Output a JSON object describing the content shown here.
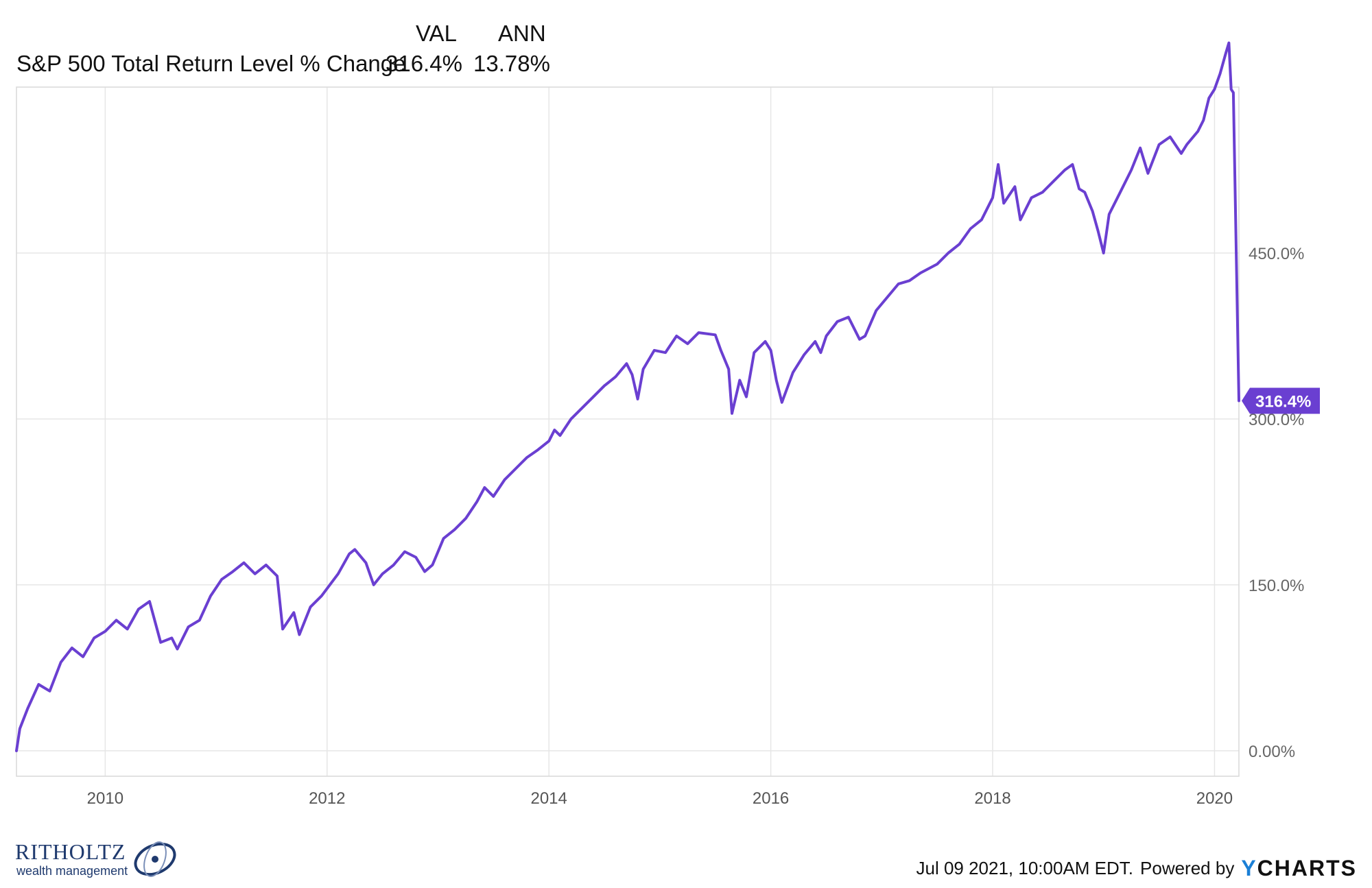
{
  "legend": {
    "col_val": "VAL",
    "col_ann": "ANN",
    "series_name": "S&P 500 Total Return Level % Change",
    "val": "316.4%",
    "ann": "13.78%"
  },
  "chart_data": {
    "type": "line",
    "series": [
      {
        "name": "S&P 500 Total Return Level % Change",
        "color": "#6a3fd1",
        "points": [
          [
            2009.2,
            0
          ],
          [
            2009.23,
            20
          ],
          [
            2009.3,
            38
          ],
          [
            2009.4,
            60
          ],
          [
            2009.5,
            54
          ],
          [
            2009.6,
            80
          ],
          [
            2009.7,
            93
          ],
          [
            2009.8,
            85
          ],
          [
            2009.9,
            102
          ],
          [
            2010.0,
            108
          ],
          [
            2010.1,
            118
          ],
          [
            2010.2,
            110
          ],
          [
            2010.3,
            128
          ],
          [
            2010.4,
            135
          ],
          [
            2010.5,
            98
          ],
          [
            2010.6,
            102
          ],
          [
            2010.65,
            92
          ],
          [
            2010.75,
            112
          ],
          [
            2010.85,
            118
          ],
          [
            2010.95,
            140
          ],
          [
            2011.05,
            155
          ],
          [
            2011.15,
            162
          ],
          [
            2011.25,
            170
          ],
          [
            2011.35,
            160
          ],
          [
            2011.45,
            168
          ],
          [
            2011.55,
            158
          ],
          [
            2011.6,
            110
          ],
          [
            2011.7,
            125
          ],
          [
            2011.75,
            105
          ],
          [
            2011.85,
            130
          ],
          [
            2011.95,
            140
          ],
          [
            2012.1,
            160
          ],
          [
            2012.2,
            178
          ],
          [
            2012.25,
            182
          ],
          [
            2012.35,
            170
          ],
          [
            2012.42,
            150
          ],
          [
            2012.5,
            160
          ],
          [
            2012.6,
            168
          ],
          [
            2012.7,
            180
          ],
          [
            2012.8,
            175
          ],
          [
            2012.88,
            162
          ],
          [
            2012.95,
            168
          ],
          [
            2013.05,
            192
          ],
          [
            2013.15,
            200
          ],
          [
            2013.25,
            210
          ],
          [
            2013.35,
            225
          ],
          [
            2013.42,
            238
          ],
          [
            2013.5,
            230
          ],
          [
            2013.6,
            245
          ],
          [
            2013.7,
            255
          ],
          [
            2013.8,
            265
          ],
          [
            2013.9,
            272
          ],
          [
            2014.0,
            280
          ],
          [
            2014.05,
            290
          ],
          [
            2014.1,
            285
          ],
          [
            2014.2,
            300
          ],
          [
            2014.3,
            310
          ],
          [
            2014.4,
            320
          ],
          [
            2014.5,
            330
          ],
          [
            2014.6,
            338
          ],
          [
            2014.7,
            350
          ],
          [
            2014.75,
            340
          ],
          [
            2014.8,
            318
          ],
          [
            2014.85,
            345
          ],
          [
            2014.95,
            362
          ],
          [
            2015.05,
            360
          ],
          [
            2015.15,
            375
          ],
          [
            2015.25,
            368
          ],
          [
            2015.35,
            378
          ],
          [
            2015.5,
            376
          ],
          [
            2015.55,
            362
          ],
          [
            2015.62,
            345
          ],
          [
            2015.65,
            305
          ],
          [
            2015.72,
            335
          ],
          [
            2015.78,
            320
          ],
          [
            2015.85,
            360
          ],
          [
            2015.95,
            370
          ],
          [
            2016.0,
            362
          ],
          [
            2016.05,
            335
          ],
          [
            2016.1,
            315
          ],
          [
            2016.2,
            342
          ],
          [
            2016.3,
            358
          ],
          [
            2016.4,
            370
          ],
          [
            2016.45,
            360
          ],
          [
            2016.5,
            375
          ],
          [
            2016.6,
            388
          ],
          [
            2016.7,
            392
          ],
          [
            2016.8,
            372
          ],
          [
            2016.85,
            375
          ],
          [
            2016.95,
            398
          ],
          [
            2017.05,
            410
          ],
          [
            2017.15,
            422
          ],
          [
            2017.25,
            425
          ],
          [
            2017.35,
            432
          ],
          [
            2017.5,
            440
          ],
          [
            2017.6,
            450
          ],
          [
            2017.7,
            458
          ],
          [
            2017.8,
            472
          ],
          [
            2017.9,
            480
          ],
          [
            2018.0,
            500
          ],
          [
            2018.05,
            530
          ],
          [
            2018.1,
            495
          ],
          [
            2018.2,
            510
          ],
          [
            2018.25,
            480
          ],
          [
            2018.35,
            500
          ],
          [
            2018.45,
            505
          ],
          [
            2018.55,
            515
          ],
          [
            2018.65,
            525
          ],
          [
            2018.72,
            530
          ],
          [
            2018.78,
            508
          ],
          [
            2018.83,
            505
          ],
          [
            2018.9,
            488
          ],
          [
            2018.95,
            470
          ],
          [
            2019.0,
            450
          ],
          [
            2019.05,
            485
          ],
          [
            2019.15,
            505
          ],
          [
            2019.25,
            525
          ],
          [
            2019.33,
            545
          ],
          [
            2019.4,
            522
          ],
          [
            2019.5,
            548
          ],
          [
            2019.6,
            555
          ],
          [
            2019.7,
            540
          ],
          [
            2019.75,
            548
          ],
          [
            2019.85,
            560
          ],
          [
            2019.9,
            570
          ],
          [
            2019.95,
            590
          ],
          [
            2020.0,
            598
          ],
          [
            2020.05,
            612
          ],
          [
            2020.1,
            630
          ],
          [
            2020.13,
            640
          ],
          [
            2020.15,
            598
          ],
          [
            2020.17,
            595
          ],
          [
            2020.22,
            316.4
          ]
        ]
      }
    ],
    "yticks": [
      "0.00%",
      "150.0%",
      "300.0%",
      "450.0%"
    ],
    "ytick_values": [
      0,
      150,
      300,
      450
    ],
    "xticks": [
      "2010",
      "2012",
      "2014",
      "2016",
      "2018",
      "2020"
    ],
    "xtick_values": [
      2010,
      2012,
      2014,
      2016,
      2018,
      2020
    ],
    "xlim": [
      2009.2,
      2020.22
    ],
    "ylim": [
      -23,
      600
    ],
    "end_label": "316.4%",
    "grid": true,
    "y_axis_side": "right"
  },
  "footer": {
    "timestamp": "Jul 09 2021, 10:00AM EDT.",
    "powered_by": "Powered by",
    "ycharts_y": "Y",
    "ycharts_rest": "CHARTS"
  },
  "logo": {
    "name": "RITHOLTZ",
    "sub": "wealth management"
  }
}
